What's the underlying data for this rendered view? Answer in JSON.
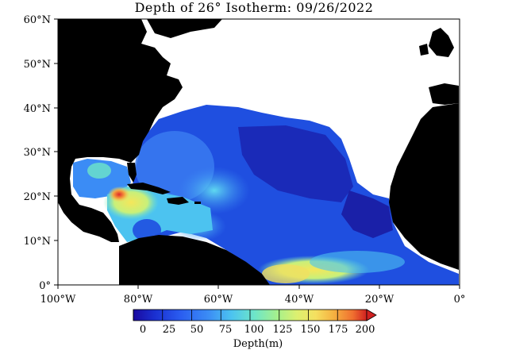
{
  "title": "Depth of 26° Isotherm: 09/26/2022",
  "map": {
    "lat_labels": [
      "60°N",
      "50°N",
      "40°N",
      "30°N",
      "20°N",
      "10°N",
      "0°"
    ],
    "lon_labels": [
      "100°W",
      "80°W",
      "60°W",
      "40°W",
      "20°W",
      "0°"
    ],
    "land_color": "#000000",
    "no_data_color": "#ffffff"
  },
  "colorbar": {
    "label": "Depth(m)",
    "tick_labels": [
      "0",
      "25",
      "50",
      "75",
      "100",
      "125",
      "150",
      "175",
      "200"
    ],
    "colors": [
      "#1a0aa0",
      "#1a2fd0",
      "#2a5cf0",
      "#3b8cf5",
      "#4cc3f0",
      "#6ee6c8",
      "#a8f08a",
      "#dcf070",
      "#f5e060",
      "#f5b040",
      "#f07030",
      "#d02020"
    ]
  }
}
